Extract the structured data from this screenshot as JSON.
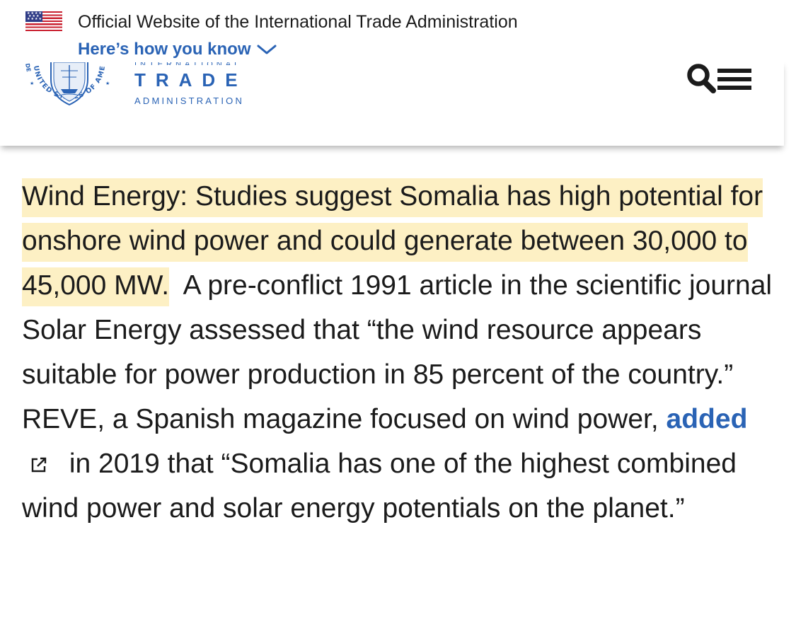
{
  "banner": {
    "official_text": "Official Website of the International Trade Administration",
    "how_you_know_label": "Here’s how you know"
  },
  "header": {
    "logo_line_top": "INTERNATIONAL",
    "logo_line_main": "TRADE",
    "logo_line_bottom": "ADMINISTRATION",
    "seal_text": "UNITED STATES OF AMERICA · DEPARTMENT OF COMMERCE"
  },
  "article": {
    "highlighted": "Wind Energy: Studies suggest Somalia has high potential for onshore wind power and could generate between 30,000 to 45,000 MW.",
    "part1": "  A pre-conflict 1991 article in the scientific journal Solar Energy assessed that “the wind resource appears suitable for power production in 85 percent of the country.”  REVE, a Spanish magazine focused on wind power, ",
    "link_text": "added",
    "part2": " in 2019 that “Somalia has one of the highest combined wind power and solar energy potentials on the planet.”"
  },
  "colors": {
    "link_blue": "#2a63b5",
    "highlight_yellow": "#fdf0c4",
    "text": "#1b1b1b",
    "flag_red": "#c9202f",
    "flag_blue": "#2f3c87"
  },
  "icons": {
    "flag": "us-flag-icon",
    "chevron": "chevron-down-icon",
    "search": "search-icon",
    "menu": "menu-icon",
    "external_link": "external-link-icon",
    "seal": "commerce-seal-icon"
  }
}
